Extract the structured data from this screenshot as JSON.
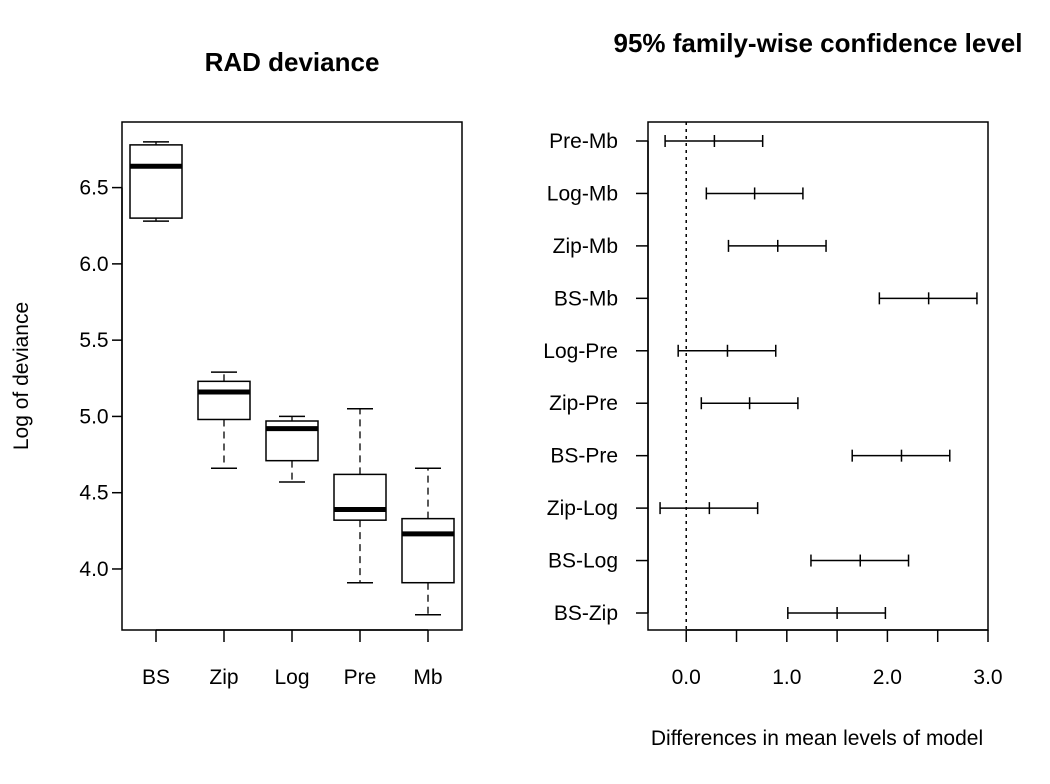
{
  "chart_data": [
    {
      "type": "boxplot",
      "title": "RAD deviance",
      "xlabel": "",
      "ylabel": "Log of deviance",
      "ylim": [
        3.6,
        6.93
      ],
      "yticks": [
        "4.0",
        "4.5",
        "5.0",
        "5.5",
        "6.0",
        "6.5"
      ],
      "categories": [
        "BS",
        "Zip",
        "Log",
        "Pre",
        "Mb"
      ],
      "boxes": [
        {
          "name": "BS",
          "min": 6.28,
          "q1": 6.3,
          "median": 6.64,
          "q3": 6.78,
          "max": 6.8
        },
        {
          "name": "Zip",
          "min": 4.66,
          "q1": 4.98,
          "median": 5.16,
          "q3": 5.23,
          "max": 5.29
        },
        {
          "name": "Log",
          "min": 4.57,
          "q1": 4.71,
          "median": 4.92,
          "q3": 4.97,
          "max": 5.0
        },
        {
          "name": "Pre",
          "min": 3.91,
          "q1": 4.32,
          "median": 4.39,
          "q3": 4.62,
          "max": 5.05
        },
        {
          "name": "Mb",
          "min": 3.7,
          "q1": 3.91,
          "median": 4.23,
          "q3": 4.33,
          "max": 4.66
        }
      ]
    },
    {
      "type": "interval",
      "title": "95% family-wise confidence level",
      "xlabel": "Differences in mean levels of model",
      "ylabel": "",
      "xlim": [
        -0.38,
        3.0
      ],
      "xticks": [
        "0.0",
        "1.0",
        "2.0",
        "3.0"
      ],
      "reference_line": 0,
      "comparisons": [
        {
          "name": "Pre-Mb",
          "lwr": -0.21,
          "diff": 0.28,
          "upr": 0.76
        },
        {
          "name": "Log-Mb",
          "lwr": 0.2,
          "diff": 0.68,
          "upr": 1.16
        },
        {
          "name": "Zip-Mb",
          "lwr": 0.42,
          "diff": 0.91,
          "upr": 1.39
        },
        {
          "name": "BS-Mb",
          "lwr": 1.92,
          "diff": 2.41,
          "upr": 2.89
        },
        {
          "name": "Log-Pre",
          "lwr": -0.08,
          "diff": 0.41,
          "upr": 0.89
        },
        {
          "name": "Zip-Pre",
          "lwr": 0.15,
          "diff": 0.63,
          "upr": 1.11
        },
        {
          "name": "BS-Pre",
          "lwr": 1.65,
          "diff": 2.14,
          "upr": 2.62
        },
        {
          "name": "Zip-Log",
          "lwr": -0.26,
          "diff": 0.23,
          "upr": 0.71
        },
        {
          "name": "BS-Log",
          "lwr": 1.24,
          "diff": 1.73,
          "upr": 2.21
        },
        {
          "name": "BS-Zip",
          "lwr": 1.01,
          "diff": 1.5,
          "upr": 1.98
        }
      ]
    }
  ]
}
